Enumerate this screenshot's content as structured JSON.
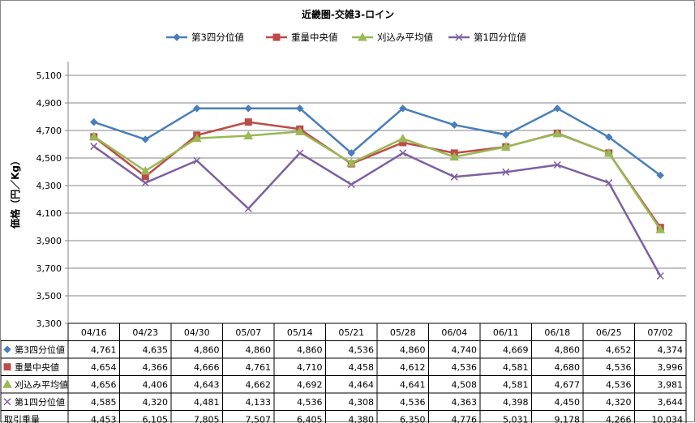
{
  "chart_data": {
    "type": "line",
    "title": "近畿圏-交雑3-ロイン",
    "ylabel": "価格（円／Kg）",
    "xlabel": "",
    "categories": [
      "04/16",
      "04/23",
      "04/30",
      "05/07",
      "05/14",
      "05/21",
      "05/28",
      "06/04",
      "06/11",
      "06/18",
      "06/25",
      "07/02"
    ],
    "ylim": [
      3300,
      5200
    ],
    "yticks": [
      "3,300",
      "3,500",
      "3,700",
      "3,900",
      "4,100",
      "4,300",
      "4,500",
      "4,700",
      "4,900",
      "5,100"
    ],
    "ytick_values": [
      3300,
      3500,
      3700,
      3900,
      4100,
      4300,
      4500,
      4700,
      4900,
      5100
    ],
    "grid": "horizontal",
    "legend_position": "top",
    "series": [
      {
        "name": "第3四分位値",
        "color": "#4a7ebb",
        "marker": "diamond",
        "values": [
          4761,
          4635,
          4860,
          4860,
          4860,
          4536,
          4860,
          4740,
          4669,
          4860,
          4652,
          4374
        ],
        "labels": [
          "4,761",
          "4,635",
          "4,860",
          "4,860",
          "4,860",
          "4,536",
          "4,860",
          "4,740",
          "4,669",
          "4,860",
          "4,652",
          "4,374"
        ]
      },
      {
        "name": "重量中央値",
        "color": "#be4b48",
        "marker": "square",
        "values": [
          4654,
          4366,
          4666,
          4761,
          4710,
          4458,
          4612,
          4536,
          4581,
          4680,
          4536,
          3996
        ],
        "labels": [
          "4,654",
          "4,366",
          "4,666",
          "4,761",
          "4,710",
          "4,458",
          "4,612",
          "4,536",
          "4,581",
          "4,680",
          "4,536",
          "3,996"
        ]
      },
      {
        "name": "刈込み平均値",
        "color": "#98b954",
        "marker": "triangle",
        "values": [
          4656,
          4406,
          4643,
          4662,
          4692,
          4464,
          4641,
          4508,
          4581,
          4677,
          4536,
          3981
        ],
        "labels": [
          "4,656",
          "4,406",
          "4,643",
          "4,662",
          "4,692",
          "4,464",
          "4,641",
          "4,508",
          "4,581",
          "4,677",
          "4,536",
          "3,981"
        ]
      },
      {
        "name": "第1四分位値",
        "color": "#7d60a0",
        "marker": "x",
        "values": [
          4585,
          4320,
          4481,
          4133,
          4536,
          4308,
          4536,
          4363,
          4398,
          4450,
          4320,
          3644
        ],
        "labels": [
          "4,585",
          "4,320",
          "4,481",
          "4,133",
          "4,536",
          "4,308",
          "4,536",
          "4,363",
          "4,398",
          "4,450",
          "4,320",
          "3,644"
        ]
      }
    ],
    "table_extra_row": {
      "name": "取引重量",
      "values": [
        4453,
        6105,
        7805,
        7507,
        6405,
        4380,
        6350,
        4776,
        5031,
        9178,
        4266,
        10034
      ],
      "labels": [
        "4,453",
        "6,105",
        "7,805",
        "7,507",
        "6,405",
        "4,380",
        "6,350",
        "4,776",
        "5,031",
        "9,178",
        "4,266",
        "10,034"
      ]
    }
  }
}
